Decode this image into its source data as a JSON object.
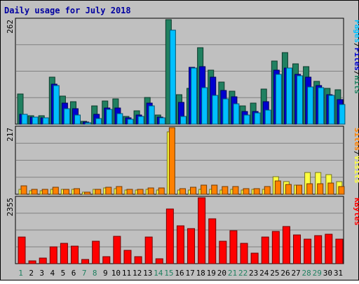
{
  "chart_data": {
    "type": "bar",
    "title": "Daily usage for July 2018",
    "days": [
      "1",
      "2",
      "3",
      "4",
      "5",
      "6",
      "7",
      "8",
      "9",
      "10",
      "11",
      "12",
      "13",
      "14",
      "15",
      "16",
      "17",
      "18",
      "19",
      "20",
      "21",
      "22",
      "23",
      "24",
      "25",
      "26",
      "27",
      "28",
      "29",
      "30",
      "31"
    ],
    "weekend_days": [
      "1",
      "7",
      "8",
      "14",
      "15",
      "21",
      "22",
      "28",
      "29"
    ],
    "colors": {
      "background": "#c0c0c0",
      "frame": "#ffffff",
      "title": "#0000a0",
      "grid": "#808080",
      "hits": "#208060",
      "files": "#0000d0",
      "pages": "#00c0ff",
      "visits": "#ff8000",
      "sites": "#ffff40",
      "kbytes": "#ff0000",
      "weekday_label": "#000000",
      "weekend_label": "#208060"
    },
    "panels": [
      {
        "id": "top",
        "axis_max_label": "262",
        "ylim": [
          0,
          262
        ],
        "right_labels": [
          {
            "text": "Pages",
            "color": "#00c0ff"
          },
          {
            "text": "/",
            "color": "#000000"
          },
          {
            "text": "Files",
            "color": "#0000d0"
          },
          {
            "text": "/",
            "color": "#000000"
          },
          {
            "text": "Hits",
            "color": "#208060"
          }
        ],
        "series": [
          {
            "key": "hits",
            "values": [
              76,
              21,
              21,
              117,
              70,
              56,
              7,
              46,
              58,
              63,
              20,
              34,
              67,
              22,
              262,
              73,
              90,
              191,
              136,
              106,
              82,
              45,
              52,
              88,
              158,
              180,
              151,
              145,
              108,
              90,
              86
            ]
          },
          {
            "key": "files",
            "values": [
              25,
              17,
              15,
              100,
              53,
              39,
              5,
              24,
              40,
              41,
              16,
              22,
              52,
              17,
              0,
              55,
              143,
              145,
              117,
              84,
              69,
              31,
              32,
              57,
              135,
              140,
              124,
              117,
              96,
              73,
              62
            ]
          },
          {
            "key": "pages",
            "values": [
              24,
              17,
              15,
              97,
              39,
              23,
              4,
              14,
              37,
              26,
              12,
              20,
              45,
              15,
              235,
              19,
              140,
              91,
              72,
              63,
              51,
              22,
              28,
              36,
              124,
              140,
              122,
              94,
              91,
              72,
              49
            ]
          }
        ]
      },
      {
        "id": "middle",
        "axis_max_label": "217",
        "ylim": [
          0,
          217
        ],
        "right_labels": [
          {
            "text": "Sites",
            "color": "#ff8000"
          },
          {
            "text": "/",
            "color": "#000000"
          },
          {
            "text": "Visits",
            "color": "#ffff40"
          }
        ],
        "series": [
          {
            "key": "sites",
            "values": [
              15,
              12,
              12,
              17,
              16,
              16,
              6,
              15,
              21,
              19,
              14,
              14,
              15,
              14,
              203,
              13,
              14,
              16,
              16,
              14,
              17,
              14,
              16,
              17,
              57,
              40,
              30,
              70,
              70,
              65,
              40
            ]
          },
          {
            "key": "visits",
            "values": [
              28,
              15,
              15,
              22,
              17,
              19,
              7,
              17,
              22,
              24,
              17,
              16,
              20,
              21,
              217,
              18,
              23,
              30,
              30,
              26,
              26,
              19,
              19,
              25,
              43,
              31,
              30,
              34,
              34,
              37,
              24
            ]
          }
        ]
      },
      {
        "id": "bottom",
        "axis_max_label": "2355",
        "ylim": [
          0,
          2355
        ],
        "right_labels": [
          {
            "text": "KBytes",
            "color": "#ff0000"
          }
        ],
        "series": [
          {
            "key": "kbytes",
            "values": [
              950,
              90,
              200,
              610,
              730,
              630,
              150,
              790,
              260,
              980,
              470,
              260,
              940,
              180,
              1950,
              1350,
              1250,
              2355,
              1600,
              800,
              1190,
              730,
              380,
              950,
              1150,
              1340,
              1030,
              880,
              1000,
              1050,
              880
            ]
          }
        ]
      }
    ]
  }
}
